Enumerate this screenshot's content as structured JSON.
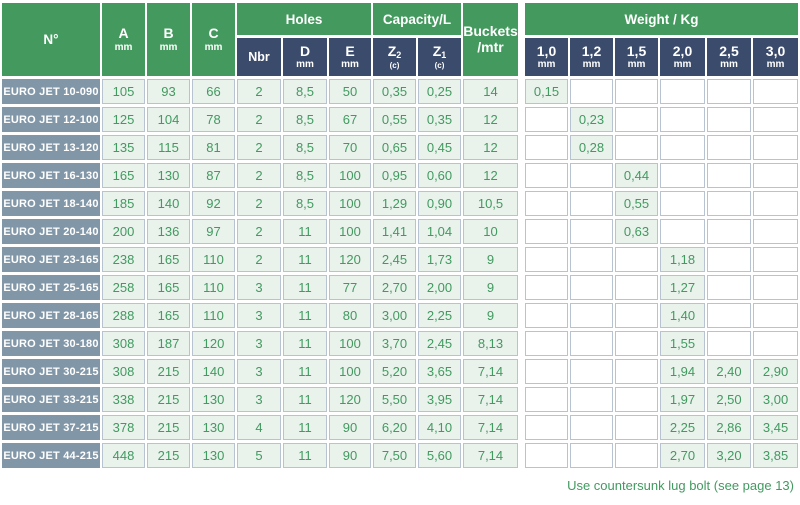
{
  "header": {
    "n": "N°",
    "abc": [
      {
        "t": "A",
        "u": "mm"
      },
      {
        "t": "B",
        "u": "mm"
      },
      {
        "t": "C",
        "u": "mm"
      }
    ],
    "holes": {
      "label": "Holes",
      "sub": [
        {
          "t": "Nbr",
          "u": ""
        },
        {
          "t": "D",
          "u": "mm"
        },
        {
          "t": "E",
          "u": "mm"
        }
      ]
    },
    "capacity": {
      "label": "Capacity/L",
      "sub": [
        {
          "t": "Z",
          "s": "2",
          "u": "(c)"
        },
        {
          "t": "Z",
          "s": "1",
          "u": "(c)"
        }
      ]
    },
    "buckets": {
      "line1": "Buckets",
      "line2": "/mtr"
    },
    "weight": {
      "label": "Weight / Kg",
      "sub": [
        {
          "t": "1,0",
          "u": "mm"
        },
        {
          "t": "1,2",
          "u": "mm"
        },
        {
          "t": "1,5",
          "u": "mm"
        },
        {
          "t": "2,0",
          "u": "mm"
        },
        {
          "t": "2,5",
          "u": "mm"
        },
        {
          "t": "3,0",
          "u": "mm"
        }
      ]
    }
  },
  "table": {
    "rows": [
      {
        "name": "EURO JET 10-090",
        "a": "105",
        "b": "93",
        "c": "66",
        "nbr": "2",
        "d": "8,5",
        "e": "50",
        "z2": "0,35",
        "z1": "0,25",
        "buckets": "14",
        "weights": [
          "0,15",
          "",
          "",
          "",
          "",
          ""
        ]
      },
      {
        "name": "EURO JET 12-100",
        "a": "125",
        "b": "104",
        "c": "78",
        "nbr": "2",
        "d": "8,5",
        "e": "67",
        "z2": "0,55",
        "z1": "0,35",
        "buckets": "12",
        "weights": [
          "",
          "0,23",
          "",
          "",
          "",
          ""
        ]
      },
      {
        "name": "EURO JET 13-120",
        "a": "135",
        "b": "115",
        "c": "81",
        "nbr": "2",
        "d": "8,5",
        "e": "70",
        "z2": "0,65",
        "z1": "0,45",
        "buckets": "12",
        "weights": [
          "",
          "0,28",
          "",
          "",
          "",
          ""
        ]
      },
      {
        "name": "EURO JET 16-130",
        "a": "165",
        "b": "130",
        "c": "87",
        "nbr": "2",
        "d": "8,5",
        "e": "100",
        "z2": "0,95",
        "z1": "0,60",
        "buckets": "12",
        "weights": [
          "",
          "",
          "0,44",
          "",
          "",
          ""
        ]
      },
      {
        "name": "EURO JET 18-140",
        "a": "185",
        "b": "140",
        "c": "92",
        "nbr": "2",
        "d": "8,5",
        "e": "100",
        "z2": "1,29",
        "z1": "0,90",
        "buckets": "10,5",
        "weights": [
          "",
          "",
          "0,55",
          "",
          "",
          ""
        ]
      },
      {
        "name": "EURO JET 20-140",
        "a": "200",
        "b": "136",
        "c": "97",
        "nbr": "2",
        "d": "11",
        "e": "100",
        "z2": "1,41",
        "z1": "1,04",
        "buckets": "10",
        "weights": [
          "",
          "",
          "0,63",
          "",
          "",
          ""
        ]
      },
      {
        "name": "EURO JET 23-165",
        "a": "238",
        "b": "165",
        "c": "110",
        "nbr": "2",
        "d": "11",
        "e": "120",
        "z2": "2,45",
        "z1": "1,73",
        "buckets": "9",
        "weights": [
          "",
          "",
          "",
          "1,18",
          "",
          ""
        ]
      },
      {
        "name": "EURO JET 25-165",
        "a": "258",
        "b": "165",
        "c": "110",
        "nbr": "3",
        "d": "11",
        "e": "77",
        "z2": "2,70",
        "z1": "2,00",
        "buckets": "9",
        "weights": [
          "",
          "",
          "",
          "1,27",
          "",
          ""
        ]
      },
      {
        "name": "EURO JET 28-165",
        "a": "288",
        "b": "165",
        "c": "110",
        "nbr": "3",
        "d": "11",
        "e": "80",
        "z2": "3,00",
        "z1": "2,25",
        "buckets": "9",
        "weights": [
          "",
          "",
          "",
          "1,40",
          "",
          ""
        ]
      },
      {
        "name": "EURO JET 30-180",
        "a": "308",
        "b": "187",
        "c": "120",
        "nbr": "3",
        "d": "11",
        "e": "100",
        "z2": "3,70",
        "z1": "2,45",
        "buckets": "8,13",
        "weights": [
          "",
          "",
          "",
          "1,55",
          "",
          ""
        ]
      },
      {
        "name": "EURO JET 30-215",
        "a": "308",
        "b": "215",
        "c": "140",
        "nbr": "3",
        "d": "11",
        "e": "100",
        "z2": "5,20",
        "z1": "3,65",
        "buckets": "7,14",
        "weights": [
          "",
          "",
          "",
          "1,94",
          "2,40",
          "2,90"
        ]
      },
      {
        "name": "EURO JET 33-215",
        "a": "338",
        "b": "215",
        "c": "130",
        "nbr": "3",
        "d": "11",
        "e": "120",
        "z2": "5,50",
        "z1": "3,95",
        "buckets": "7,14",
        "weights": [
          "",
          "",
          "",
          "1,97",
          "2,50",
          "3,00"
        ]
      },
      {
        "name": "EURO JET 37-215",
        "a": "378",
        "b": "215",
        "c": "130",
        "nbr": "4",
        "d": "11",
        "e": "90",
        "z2": "6,20",
        "z1": "4,10",
        "buckets": "7,14",
        "weights": [
          "",
          "",
          "",
          "2,25",
          "2,86",
          "3,45"
        ]
      },
      {
        "name": "EURO JET 44-215",
        "a": "448",
        "b": "215",
        "c": "130",
        "nbr": "5",
        "d": "11",
        "e": "90",
        "z2": "7,50",
        "z1": "5,60",
        "buckets": "7,14",
        "weights": [
          "",
          "",
          "",
          "2,70",
          "3,20",
          "3,85"
        ]
      }
    ]
  },
  "footer": {
    "note": "Use countersunk lug bolt (see page 13)"
  },
  "colors": {
    "header_green": "#449a5e",
    "subheader_navy": "#3b4b6c",
    "row_label_slate": "#8197a8",
    "cell_green_bg": "#eaf2ec",
    "text_green": "#419a60",
    "cell_border": "#b7c3d1"
  }
}
